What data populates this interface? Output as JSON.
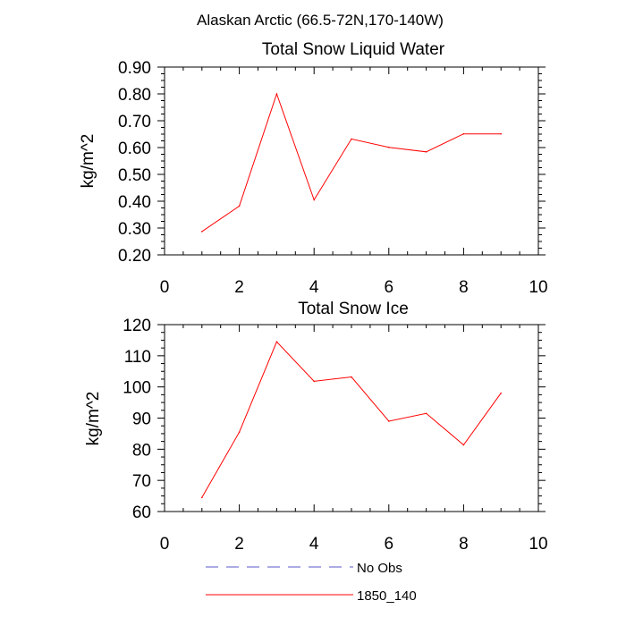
{
  "figure_title": "Alaskan Arctic (66.5-72N,170-140W)",
  "chart_data": [
    {
      "type": "line",
      "title": "Total Snow Liquid Water",
      "xlabel": "",
      "ylabel": "kg/m^2",
      "xlim": [
        0,
        10
      ],
      "ylim": [
        0.2,
        0.9
      ],
      "xticks": [
        0,
        2,
        4,
        6,
        8,
        10
      ],
      "xtick_labels": [
        "0",
        "2",
        "4",
        "6",
        "8",
        "10"
      ],
      "yticks": [
        0.2,
        0.3,
        0.4,
        0.5,
        0.6,
        0.7,
        0.8,
        0.9
      ],
      "ytick_labels": [
        "0.20",
        "0.30",
        "0.40",
        "0.50",
        "0.60",
        "0.70",
        "0.80",
        "0.90"
      ],
      "grid": false,
      "series": [
        {
          "name": "1850_140",
          "color": "#ff0000",
          "x": [
            1,
            2,
            3,
            4,
            5,
            6,
            7,
            8,
            9
          ],
          "y": [
            0.287,
            0.382,
            0.8,
            0.405,
            0.632,
            0.601,
            0.584,
            0.651,
            0.651
          ]
        }
      ]
    },
    {
      "type": "line",
      "title": "Total Snow Ice",
      "xlabel": "",
      "ylabel": "kg/m^2",
      "xlim": [
        0,
        10
      ],
      "ylim": [
        60,
        120
      ],
      "xticks": [
        0,
        2,
        4,
        6,
        8,
        10
      ],
      "xtick_labels": [
        "0",
        "2",
        "4",
        "6",
        "8",
        "10"
      ],
      "yticks": [
        60,
        70,
        80,
        90,
        100,
        110,
        120
      ],
      "ytick_labels": [
        "60",
        "70",
        "80",
        "90",
        "100",
        "110",
        "120"
      ],
      "grid": false,
      "series": [
        {
          "name": "1850_140",
          "color": "#ff0000",
          "x": [
            1,
            2,
            3,
            4,
            5,
            6,
            7,
            8,
            9
          ],
          "y": [
            64.5,
            85.5,
            114.5,
            101.8,
            103.2,
            89.0,
            91.5,
            81.4,
            98.0
          ]
        }
      ]
    }
  ],
  "legend": {
    "position": "bottom-center",
    "items": [
      {
        "label": "No Obs",
        "color": "#5a5ac8",
        "style": "dashed"
      },
      {
        "label": "1850_140",
        "color": "#ff0000",
        "style": "solid"
      }
    ]
  }
}
